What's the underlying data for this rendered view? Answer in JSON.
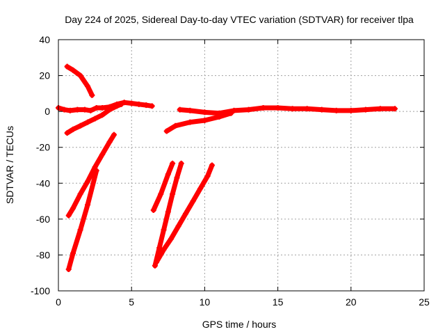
{
  "chart_data": {
    "type": "scatter",
    "title": "Day 224 of 2025, Sidereal Day-to-day VTEC variation (SDTVAR) for receiver tlpa",
    "xlabel": "GPS time / hours",
    "ylabel": "SDTVAR / TECUs",
    "xlim": [
      0,
      25
    ],
    "ylim": [
      -100,
      40
    ],
    "xticks": [
      "0",
      "5",
      "10",
      "15",
      "20",
      "25"
    ],
    "yticks": [
      "40",
      "20",
      "0",
      "-20",
      "-40",
      "-60",
      "-80",
      "-100"
    ],
    "xtick_values": [
      0,
      5,
      10,
      15,
      20,
      25
    ],
    "ytick_values": [
      40,
      20,
      0,
      -20,
      -40,
      -60,
      -80,
      -100
    ],
    "grid": true,
    "marker": "+",
    "series_color": "#ff0000",
    "series": [
      {
        "x": [
          0.0,
          0.4,
          0.8,
          1.3,
          1.8,
          2.2,
          2.6,
          3.0,
          3.5,
          4.0,
          4.5,
          5.0,
          5.5,
          6.0,
          6.4
        ],
        "y": [
          2,
          1,
          0.5,
          1,
          1,
          0.5,
          2,
          2,
          2.5,
          4,
          5,
          4.5,
          4,
          3.5,
          3
        ]
      },
      {
        "x": [
          0.6,
          1.0,
          1.5,
          2.0,
          2.3
        ],
        "y": [
          25,
          23,
          20,
          14,
          9
        ]
      },
      {
        "x": [
          0.6,
          1.0,
          1.5,
          2.0,
          2.5,
          3.0,
          3.5,
          4.0,
          4.3
        ],
        "y": [
          -12,
          -10,
          -8,
          -6,
          -4,
          -2,
          1,
          3,
          4
        ]
      },
      {
        "x": [
          0.7,
          1.0,
          1.5,
          2.0,
          2.5,
          3.0,
          3.5,
          3.8
        ],
        "y": [
          -58,
          -54,
          -46,
          -39,
          -31,
          -24,
          -17,
          -13
        ]
      },
      {
        "x": [
          0.7,
          1.0,
          1.5,
          2.0,
          2.6
        ],
        "y": [
          -88,
          -79,
          -66,
          -52,
          -33
        ]
      },
      {
        "x": [
          6.5,
          7.0,
          7.5,
          7.8
        ],
        "y": [
          -55,
          -46,
          -35,
          -29
        ]
      },
      {
        "x": [
          6.6,
          6.9,
          7.2,
          7.5,
          7.8,
          8.1,
          8.4
        ],
        "y": [
          -86,
          -76,
          -66,
          -56,
          -46,
          -37,
          -29
        ]
      },
      {
        "x": [
          6.7,
          7.2,
          7.7,
          8.2,
          8.7,
          9.2,
          9.7,
          10.2,
          10.5
        ],
        "y": [
          -84,
          -77,
          -71,
          -64,
          -57,
          -50,
          -43,
          -36,
          -30
        ]
      },
      {
        "x": [
          7.4,
          8.0,
          9.0,
          10.0,
          11.0,
          11.8
        ],
        "y": [
          -11,
          -8,
          -6,
          -5,
          -3,
          -1
        ]
      },
      {
        "x": [
          8.3,
          9.0,
          10.0,
          11.0,
          12.0,
          13.0,
          14.0,
          15.0,
          16.0,
          17.0,
          18.0,
          19.0,
          20.0,
          21.0,
          22.0,
          23.0
        ],
        "y": [
          1,
          0.5,
          -0.5,
          -1,
          0.5,
          1,
          2,
          2,
          1.5,
          1.5,
          1,
          0.5,
          0.5,
          1,
          1.5,
          1.5
        ]
      }
    ]
  }
}
